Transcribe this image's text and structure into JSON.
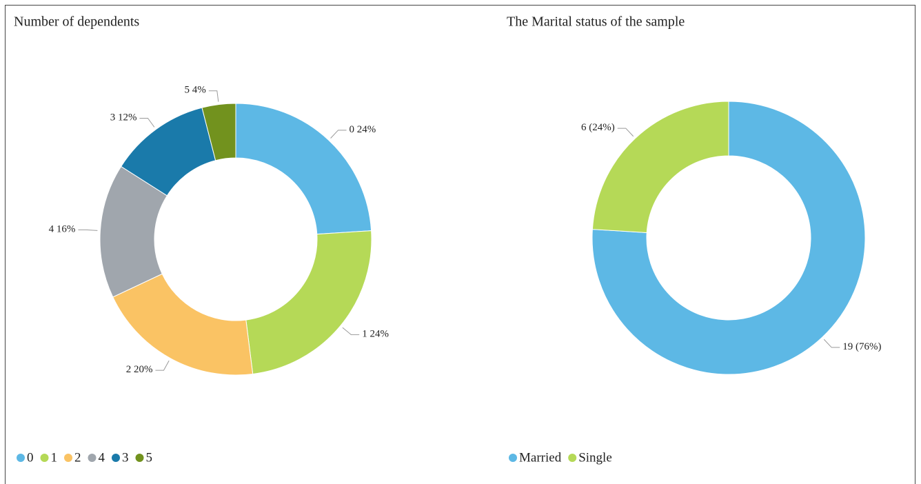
{
  "chart_data": [
    {
      "type": "donut",
      "title": "Number of dependents",
      "categories": [
        "0",
        "1",
        "2",
        "4",
        "3",
        "5"
      ],
      "values": [
        24,
        24,
        20,
        16,
        12,
        4
      ],
      "value_labels": [
        "24%",
        "24%",
        "20%",
        "16%",
        "12%",
        "4%"
      ],
      "colors": [
        "#5db8e5",
        "#b5d957",
        "#fac364",
        "#a0a6ad",
        "#1a7aaa",
        "#72921e"
      ]
    },
    {
      "type": "donut",
      "title": "The Marital status of the sample",
      "categories": [
        "Married",
        "Single"
      ],
      "values": [
        19,
        6
      ],
      "value_labels": [
        "19 (76%)",
        "6 (24%)"
      ],
      "colors": [
        "#5db8e5",
        "#b5d957"
      ]
    }
  ]
}
